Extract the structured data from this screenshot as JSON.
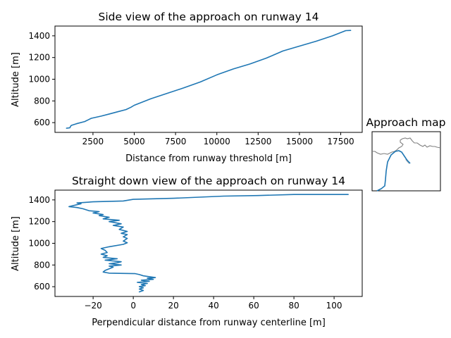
{
  "colors": {
    "series": "#1f77b4",
    "map_outline": "#808080",
    "map_runway": "#bbbbbb"
  },
  "chart_data": [
    {
      "type": "line",
      "title": "Side view of the approach on runway 14",
      "xlabel": "Distance from runway threshold [m]",
      "ylabel": "Altitude [m]",
      "xlim": [
        200,
        18800
      ],
      "ylim": [
        510,
        1490
      ],
      "xticks": [
        2500,
        5000,
        7500,
        10000,
        12500,
        15000,
        17500
      ],
      "yticks": [
        600,
        800,
        1000,
        1200,
        1400
      ],
      "grid": false,
      "series": [
        {
          "x": [
            900,
            1100,
            1150,
            1200,
            1500,
            2000,
            2200,
            2400,
            3000,
            3500,
            4000,
            4500,
            4800,
            5000,
            6000,
            7000,
            8000,
            9000,
            10000,
            11000,
            12000,
            13000,
            14000,
            15000,
            16000,
            17000,
            17800,
            18100
          ],
          "y": [
            548,
            552,
            568,
            575,
            590,
            610,
            625,
            640,
            660,
            680,
            700,
            720,
            742,
            760,
            820,
            870,
            920,
            975,
            1040,
            1095,
            1140,
            1195,
            1260,
            1305,
            1350,
            1400,
            1448,
            1450
          ]
        }
      ]
    },
    {
      "type": "line",
      "title": "Straight down view of the approach on runway 14",
      "xlabel": "Perpendicular distance from runway centerline [m]",
      "ylabel": "Altitude [m]",
      "xlim": [
        -39,
        114
      ],
      "ylim": [
        510,
        1490
      ],
      "xticks": [
        -20,
        0,
        20,
        40,
        60,
        80,
        100
      ],
      "yticks": [
        600,
        800,
        1000,
        1200,
        1400
      ],
      "grid": false,
      "series": [
        {
          "x": [
            3,
            5,
            3,
            5,
            3,
            6,
            4,
            7,
            2,
            8,
            4,
            10,
            7,
            11,
            5,
            3,
            1,
            -12,
            -15,
            -14,
            -12,
            -10,
            -12,
            -6,
            -12,
            -8,
            -6,
            -14,
            -8,
            -15,
            -13,
            -16,
            -13,
            -14,
            -16,
            -12,
            -5,
            -3,
            -5,
            -3,
            -5,
            -3,
            -6,
            -3,
            -7,
            -5,
            -10,
            -6,
            -12,
            -7,
            -15,
            -12,
            -17,
            -15,
            -20,
            -17,
            -22,
            -25,
            -28,
            -32,
            -26,
            -28,
            -20,
            -5,
            0,
            10,
            20,
            45,
            62,
            80,
            107
          ],
          "y": [
            552,
            565,
            578,
            590,
            600,
            610,
            620,
            630,
            640,
            650,
            660,
            668,
            678,
            684,
            700,
            712,
            720,
            725,
            735,
            750,
            765,
            780,
            790,
            800,
            812,
            820,
            830,
            845,
            858,
            870,
            885,
            900,
            915,
            935,
            952,
            968,
            990,
            1005,
            1020,
            1045,
            1060,
            1080,
            1092,
            1110,
            1128,
            1150,
            1165,
            1180,
            1200,
            1212,
            1225,
            1240,
            1255,
            1265,
            1280,
            1292,
            1300,
            1318,
            1330,
            1338,
            1365,
            1372,
            1382,
            1390,
            1405,
            1410,
            1415,
            1435,
            1440,
            1450,
            1450
          ]
        }
      ]
    }
  ],
  "inset": {
    "title": "Approach map"
  }
}
